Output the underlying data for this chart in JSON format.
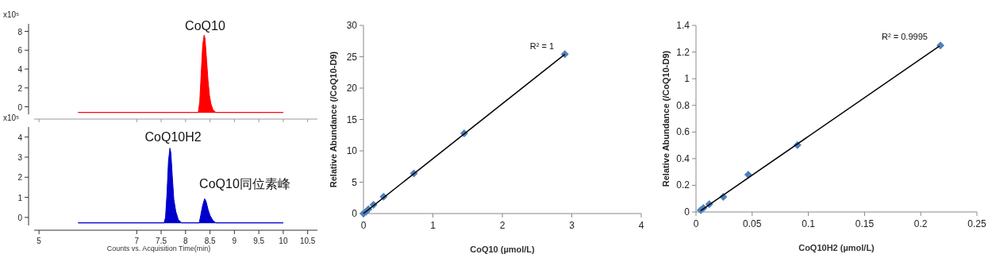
{
  "chart_data": [
    {
      "type": "area",
      "ylabel": "x10⁵",
      "xlim": [
        4.9,
        10.7
      ],
      "xticks": [
        5,
        7,
        7.5,
        8,
        8.5,
        9,
        9.5,
        10,
        10.5
      ],
      "ylim": [
        -0.8,
        8.8
      ],
      "yticks": [
        0,
        2,
        4,
        6,
        8
      ],
      "tick_labels": "y",
      "annotations": [
        "CoQ10"
      ],
      "series": [
        {
          "type": "area",
          "color": "#ff0000",
          "x": [
            5.8,
            8.26,
            8.29,
            8.32,
            8.35,
            8.38,
            8.4,
            8.43,
            8.46,
            8.49,
            8.52,
            8.56,
            8.62,
            10.0
          ],
          "values": [
            -0.6,
            -0.6,
            0.5,
            3.5,
            6.5,
            7.6,
            7.2,
            5.0,
            2.8,
            1.2,
            0.3,
            -0.3,
            -0.6,
            -0.6
          ]
        }
      ]
    },
    {
      "type": "area",
      "ylabel": "x10⁵",
      "xlim": [
        4.9,
        10.7
      ],
      "ylim": [
        -0.4,
        4.5
      ],
      "xticks": [
        5,
        7,
        7.5,
        8,
        8.5,
        9,
        9.5,
        10,
        10.5
      ],
      "yticks": [
        0,
        1,
        2,
        3,
        4
      ],
      "xlabel": "Counts vs. Acquisition Time(min)",
      "annotations": [
        "CoQ10H2",
        "CoQ10同位素峰"
      ],
      "series": [
        {
          "type": "area",
          "color": "#0000cc",
          "x": [
            5.8,
            7.56,
            7.59,
            7.62,
            7.65,
            7.68,
            7.7,
            7.73,
            7.76,
            7.8,
            7.85,
            7.92,
            8.28,
            8.31,
            8.35,
            8.39,
            8.42,
            8.46,
            8.5,
            8.56,
            8.62,
            10.0
          ],
          "values": [
            -0.27,
            -0.27,
            0.0,
            1.2,
            2.8,
            3.45,
            3.2,
            2.0,
            0.9,
            0.3,
            -0.1,
            -0.27,
            -0.27,
            0.1,
            0.6,
            0.93,
            0.8,
            0.4,
            0.1,
            -0.15,
            -0.27,
            -0.27
          ]
        }
      ]
    },
    {
      "type": "scatter",
      "xlabel": "CoQ10 (µmol/L)",
      "ylabel": "Relative Abundance (/CoQ10-D9)",
      "xlim": [
        0,
        4
      ],
      "ylim": [
        0,
        30
      ],
      "xticks": [
        0,
        1,
        2,
        3,
        4
      ],
      "yticks": [
        0,
        5,
        10,
        15,
        20,
        25,
        30
      ],
      "annotations": [
        "R² = 1"
      ],
      "series": [
        {
          "type": "scatter",
          "marker": "diamond",
          "color": "#4f81bd",
          "x": [
            0.0,
            0.036,
            0.072,
            0.144,
            0.29,
            0.726,
            1.45,
            2.9
          ],
          "values": [
            0.0,
            0.3,
            0.7,
            1.4,
            2.7,
            6.4,
            12.8,
            25.4
          ]
        },
        {
          "type": "line",
          "marker": "none",
          "color": "#000000",
          "x": [
            0,
            2.9
          ],
          "values": [
            0,
            25.4
          ]
        }
      ]
    },
    {
      "type": "scatter",
      "xlabel": "CoQ10H2 (µmol/L)",
      "ylabel": "Relative Abundance (/CoQ10-D9)",
      "xlim": [
        0,
        0.25
      ],
      "ylim": [
        0,
        1.4
      ],
      "xticks": [
        0,
        0.05,
        0.1,
        0.15,
        0.2,
        0.25
      ],
      "yticks": [
        0,
        0.2,
        0.4,
        0.6,
        0.8,
        1,
        1.2,
        1.4
      ],
      "annotations": [
        "R² = 0.9995"
      ],
      "series": [
        {
          "type": "scatter",
          "marker": "diamond",
          "color": "#4f81bd",
          "x": [
            0.0042,
            0.0066,
            0.0118,
            0.0243,
            0.0465,
            0.0903,
            0.2175
          ],
          "values": [
            0.014,
            0.03,
            0.058,
            0.113,
            0.28,
            0.502,
            1.25
          ]
        },
        {
          "type": "line",
          "marker": "none",
          "color": "#000000",
          "x": [
            0.0042,
            0.2165
          ],
          "values": [
            0.01,
            1.244
          ]
        }
      ]
    }
  ]
}
